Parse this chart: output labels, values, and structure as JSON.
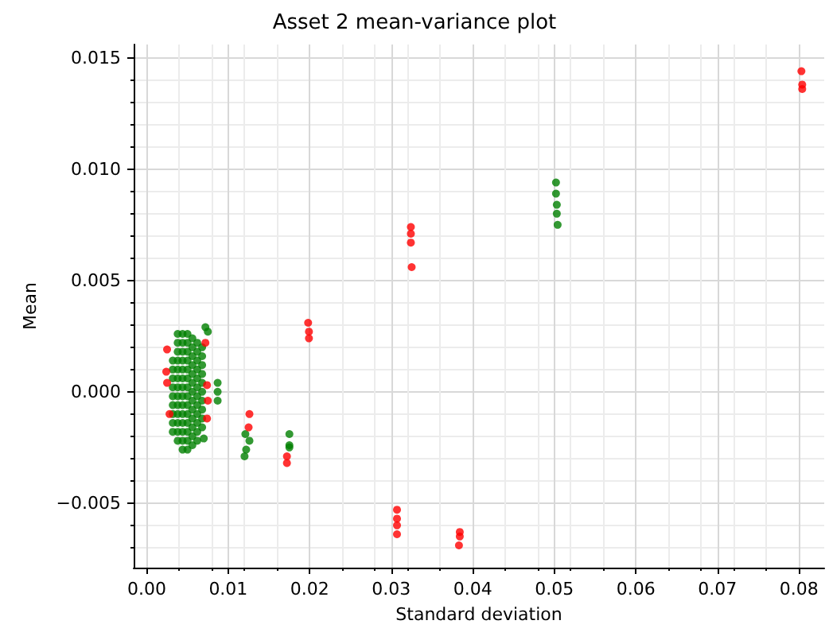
{
  "chart_data": {
    "type": "scatter",
    "title": "Asset 2 mean-variance plot",
    "xlabel": "Standard deviation",
    "ylabel": "Mean",
    "xlim": [
      -0.0016,
      0.0831
    ],
    "ylim": [
      -0.0079,
      0.0156
    ],
    "xticks": [
      {
        "value": 0,
        "label": "0.00"
      },
      0.01,
      0.02,
      0.03,
      0.04,
      0.05,
      0.06,
      0.07,
      0.08
    ],
    "yticks": [
      {
        "value": -0.005,
        "label": "−0.005"
      },
      {
        "value": 0,
        "label": "0.000"
      },
      0.005,
      {
        "value": 0.01,
        "label": "0.010"
      },
      0.015
    ],
    "grid": true,
    "marker": "circle",
    "series": [
      {
        "color": "#008000",
        "x": [
          0.0032,
          0.0032,
          0.0032,
          0.0032,
          0.0032,
          0.0032,
          0.0032,
          0.0032,
          0.0032,
          0.0038,
          0.0038,
          0.0038,
          0.0038,
          0.0038,
          0.0038,
          0.0038,
          0.0038,
          0.0038,
          0.0038,
          0.0038,
          0.0038,
          0.0038,
          0.0044,
          0.0044,
          0.0044,
          0.0044,
          0.0044,
          0.0044,
          0.0044,
          0.0044,
          0.0044,
          0.0044,
          0.0044,
          0.0044,
          0.0044,
          0.0044,
          0.005,
          0.005,
          0.005,
          0.005,
          0.005,
          0.005,
          0.005,
          0.005,
          0.005,
          0.005,
          0.005,
          0.005,
          0.005,
          0.005,
          0.0056,
          0.0056,
          0.0056,
          0.0056,
          0.0056,
          0.0056,
          0.0056,
          0.0056,
          0.0056,
          0.0056,
          0.0056,
          0.0056,
          0.0056,
          0.0062,
          0.0062,
          0.0062,
          0.0062,
          0.0062,
          0.0062,
          0.0062,
          0.0062,
          0.0062,
          0.0062,
          0.0062,
          0.0062,
          0.0068,
          0.0068,
          0.0068,
          0.0068,
          0.0068,
          0.0068,
          0.0068,
          0.0068,
          0.0068,
          0.0068,
          0.0087,
          0.0087,
          0.0087,
          0.0072,
          0.007,
          0.0075,
          0.0121,
          0.0126,
          0.0122,
          0.012,
          0.0175,
          0.0175,
          0.0175,
          0.0502,
          0.0502,
          0.0503,
          0.0503,
          0.0504
        ],
        "values": [
          -0.0018,
          -0.0014,
          -0.001,
          -0.0006,
          -0.0002,
          0.0002,
          0.0006,
          0.001,
          0.0014,
          -0.0022,
          -0.0018,
          -0.0014,
          -0.001,
          -0.0006,
          -0.0002,
          0.0002,
          0.0006,
          0.001,
          0.0014,
          0.0018,
          0.0022,
          0.0026,
          -0.0026,
          -0.0022,
          -0.0018,
          -0.0014,
          -0.001,
          -0.0006,
          -0.0002,
          0.0002,
          0.0006,
          0.001,
          0.0014,
          0.0018,
          0.0022,
          0.0026,
          -0.0026,
          -0.0022,
          -0.0018,
          -0.0014,
          -0.001,
          -0.0006,
          -0.0002,
          0.0002,
          0.0006,
          0.001,
          0.0014,
          0.0018,
          0.0022,
          0.0026,
          -0.0024,
          -0.002,
          -0.0016,
          -0.0012,
          -0.0008,
          -0.0004,
          0,
          0.0004,
          0.0008,
          0.0012,
          0.0016,
          0.002,
          0.0024,
          -0.0022,
          -0.0018,
          -0.0014,
          -0.001,
          -0.0006,
          -0.0002,
          0.0002,
          0.0006,
          0.001,
          0.0014,
          0.0018,
          0.0022,
          -0.0016,
          -0.0012,
          -0.0008,
          -0.0004,
          0,
          0.0004,
          0.0008,
          0.0012,
          0.0016,
          0.002,
          0.0004,
          0,
          -0.0004,
          0.0029,
          -0.0021,
          0.0027,
          -0.0019,
          -0.0022,
          -0.0026,
          -0.0029,
          -0.0019,
          -0.0024,
          -0.0025,
          0.0094,
          0.0089,
          0.0084,
          0.008,
          0.0075
        ]
      },
      {
        "color": "#ff0000",
        "x": [
          0.0803,
          0.0804,
          0.0804,
          0.0324,
          0.0324,
          0.0324,
          0.0325,
          0.0198,
          0.0199,
          0.0199,
          0.0307,
          0.0307,
          0.0307,
          0.0307,
          0.0384,
          0.0384,
          0.0383,
          0.0126,
          0.0125,
          0.0172,
          0.0172,
          0.0025,
          0.0024,
          0.0025,
          0.0028,
          0.0072,
          0.0074,
          0.0075,
          0.0074
        ],
        "values": [
          0.0144,
          0.0138,
          0.0136,
          0.0074,
          0.0071,
          0.0067,
          0.0056,
          0.0031,
          0.0027,
          0.0024,
          -0.0053,
          -0.0057,
          -0.006,
          -0.0064,
          -0.0063,
          -0.0065,
          -0.0069,
          -0.001,
          -0.0016,
          -0.0029,
          -0.0032,
          0.0019,
          0.0009,
          0.0004,
          -0.001,
          0.0022,
          0.0003,
          -0.0004,
          -0.0012
        ]
      }
    ]
  }
}
